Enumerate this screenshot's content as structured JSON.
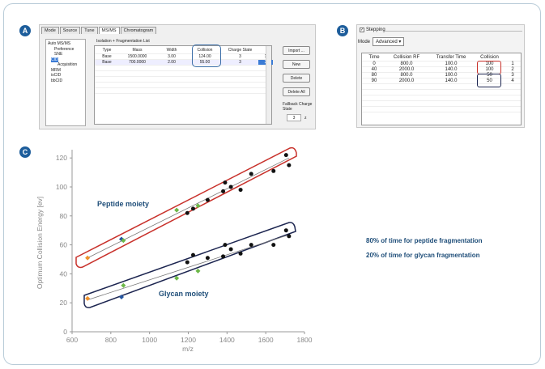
{
  "panels": {
    "a": "A",
    "b": "B",
    "c": "C"
  },
  "panel_a": {
    "tabs": [
      "Mode",
      "Source",
      "Tune",
      "MS/MS",
      "Chromatogram"
    ],
    "tree": [
      "Auto MS/MS",
      "Preference",
      "SNE",
      "CID",
      "Acquisition",
      "MRM",
      "isCID",
      "bbCID"
    ],
    "group_label": "Isolation + Fragmentation List",
    "columns": [
      "Type",
      "Mass",
      "Width",
      "Collision",
      "Charge State",
      ""
    ],
    "rows": [
      [
        "Base",
        "1500.0000",
        "3.00",
        "124.00",
        "3",
        "1"
      ],
      [
        "Base",
        "700.0000",
        "2.00",
        "55.00",
        "3",
        "2"
      ]
    ],
    "buttons": [
      "Import ...",
      "New",
      "Delete",
      "Delete All"
    ],
    "fallback_label": "Fallback Charge State",
    "fallback_value": "3",
    "fallback_unit": "z"
  },
  "panel_b": {
    "stepping_label": "Stepping",
    "mode_label": "Mode",
    "mode_value": "Advanced",
    "columns": [
      "Time",
      "Collision RF",
      "Transfer Time",
      "Collision",
      ""
    ],
    "rows": [
      [
        "0",
        "800.0",
        "100.0",
        "100",
        "1"
      ],
      [
        "40",
        "2000.0",
        "140.0",
        "100",
        "2"
      ],
      [
        "80",
        "800.0",
        "100.0",
        "50",
        "3"
      ],
      [
        "90",
        "2000.0",
        "140.0",
        "50",
        "4"
      ]
    ]
  },
  "notes": [
    "80% of time for peptide fragmentation",
    "20% of time for glycan fragmentation"
  ],
  "chart_data": {
    "type": "scatter",
    "xlabel": "m/z",
    "ylabel": "Optimum Collision Energy [ev]",
    "xlim": [
      600,
      1800
    ],
    "ylim": [
      0,
      125
    ],
    "xticks": [
      600,
      800,
      1000,
      1200,
      1400,
      1600,
      1800
    ],
    "yticks": [
      0,
      20,
      40,
      60,
      80,
      100,
      120
    ],
    "grid": false,
    "annotations": [
      "Peptide moiety",
      "Glycan moiety"
    ],
    "colors": {
      "peptide_box": "#c8312b",
      "glycan_box": "#1c2550",
      "orange": "#f0922b",
      "blue": "#2455a0",
      "green": "#6cb848",
      "black": "#111111",
      "fit": "#777777"
    },
    "series": [
      {
        "points": [
          [
            680,
            51,
            "orange"
          ],
          [
            855,
            64,
            "blue"
          ],
          [
            865,
            63,
            "green"
          ],
          [
            1140,
            84,
            "green"
          ],
          [
            1195,
            82,
            "black"
          ],
          [
            1225,
            85,
            "black"
          ],
          [
            1250,
            87,
            "green"
          ],
          [
            1300,
            91,
            "black"
          ],
          [
            1380,
            97,
            "black"
          ],
          [
            1390,
            103,
            "black"
          ],
          [
            1420,
            100,
            "black"
          ],
          [
            1470,
            98,
            "black"
          ],
          [
            1525,
            109,
            "black"
          ],
          [
            1640,
            111,
            "black"
          ],
          [
            1705,
            122,
            "black"
          ],
          [
            1720,
            115,
            "black"
          ]
        ],
        "fit": [
          [
            680,
            51
          ],
          [
            1720,
            120
          ]
        ]
      },
      {
        "points": [
          [
            680,
            23,
            "orange"
          ],
          [
            855,
            24,
            "blue"
          ],
          [
            865,
            32,
            "green"
          ],
          [
            1140,
            37,
            "green"
          ],
          [
            1195,
            48,
            "black"
          ],
          [
            1225,
            53,
            "black"
          ],
          [
            1250,
            42,
            "green"
          ],
          [
            1300,
            51,
            "black"
          ],
          [
            1380,
            52,
            "black"
          ],
          [
            1390,
            60,
            "black"
          ],
          [
            1420,
            57,
            "black"
          ],
          [
            1470,
            54,
            "black"
          ],
          [
            1525,
            60,
            "black"
          ],
          [
            1640,
            60,
            "black"
          ],
          [
            1705,
            70,
            "black"
          ],
          [
            1720,
            66,
            "black"
          ]
        ],
        "fit": [
          [
            680,
            22
          ],
          [
            1720,
            67
          ]
        ]
      }
    ]
  }
}
